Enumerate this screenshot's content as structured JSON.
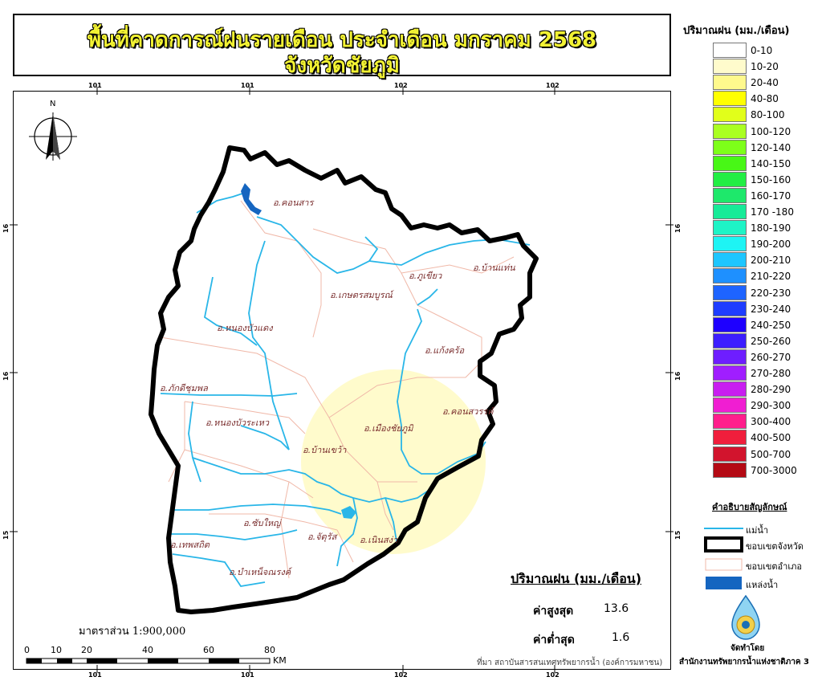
{
  "title": {
    "line1": "พื้นที่คาดการณ์ฝนรายเดือน ประจำเดือน มกราคม 2568",
    "line2": "จังหวัดชัยภูมิ"
  },
  "grid": {
    "top_ticks": [
      "101",
      "101",
      "102",
      "102"
    ],
    "bottom_ticks": [
      "101",
      "101",
      "102",
      "102"
    ],
    "left_ticks": [
      "16",
      "16",
      "15"
    ],
    "right_ticks": [
      "16",
      "16",
      "15"
    ]
  },
  "north_label": "N",
  "amphoe_labels": [
    "อ.คอนสาร",
    "อ.ภูเขียว",
    "อ.บ้านแท่น",
    "อ.เกษตรสมบูรณ์",
    "อ.หนองบัวแดง",
    "อ.แก้งคร้อ",
    "อ.ภักดีชุมพล",
    "อ.หนองบัวระเหว",
    "อ.เมืองชัยภูมิ",
    "อ.คอนสวรรค์",
    "อ.บ้านเขว้า",
    "อ.ซับใหญ่",
    "อ.จัตุรัส",
    "อ.เทพสถิต",
    "อ.เนินสง่า",
    "อ.บำเหน็จณรงค์"
  ],
  "legend": {
    "title": "ปริมาณฝน (มม./เดือน)",
    "classes": [
      {
        "label": "0-10",
        "color": "#ffffff"
      },
      {
        "label": "10-20",
        "color": "#fffbcc"
      },
      {
        "label": "20-40",
        "color": "#fff98d"
      },
      {
        "label": "40-80",
        "color": "#ffff00"
      },
      {
        "label": "80-100",
        "color": "#e1ff1a"
      },
      {
        "label": "100-120",
        "color": "#aaff22"
      },
      {
        "label": "120-140",
        "color": "#7dff19"
      },
      {
        "label": "140-150",
        "color": "#48f716"
      },
      {
        "label": "150-160",
        "color": "#22ee44"
      },
      {
        "label": "160-170",
        "color": "#1ee86b"
      },
      {
        "label": "170 -180",
        "color": "#17eb98"
      },
      {
        "label": "180-190",
        "color": "#1ef4c6"
      },
      {
        "label": "190-200",
        "color": "#1ef4f4"
      },
      {
        "label": "200-210",
        "color": "#1ec6ff"
      },
      {
        "label": "210-220",
        "color": "#1e90ff"
      },
      {
        "label": "220-230",
        "color": "#1e64ff"
      },
      {
        "label": "230-240",
        "color": "#1e3cff"
      },
      {
        "label": "240-250",
        "color": "#1e00ff"
      },
      {
        "label": "250-260",
        "color": "#3c1eff"
      },
      {
        "label": "260-270",
        "color": "#6e1eff"
      },
      {
        "label": "270-280",
        "color": "#a01eff"
      },
      {
        "label": "280-290",
        "color": "#c81ef0"
      },
      {
        "label": "290-300",
        "color": "#f01ed2"
      },
      {
        "label": "300-400",
        "color": "#ff1e8c"
      },
      {
        "label": "400-500",
        "color": "#f01e3c"
      },
      {
        "label": "500-700",
        "color": "#d2142d"
      },
      {
        "label": "700-3000",
        "color": "#b40a14"
      }
    ]
  },
  "key": {
    "title": "คำอธิบายสัญลักษณ์",
    "items": [
      {
        "label": "แม่น้ำ",
        "type": "river"
      },
      {
        "label": "ขอบเขตจังหวัด",
        "type": "province"
      },
      {
        "label": "ขอบเขตอำเภอ",
        "type": "district"
      },
      {
        "label": "แหล่งน้ำ",
        "type": "waterbody"
      }
    ]
  },
  "stats": {
    "title": "ปริมาณฝน (มม./เดือน)",
    "max_label": "ค่าสูงสุด",
    "max_value": "13.6",
    "min_label": "ค่าต่ำสุด",
    "min_value": "1.6"
  },
  "scale": {
    "text": "มาตราส่วน  1:900,000",
    "ticks": [
      "0",
      "10",
      "20",
      "40",
      "60",
      "80"
    ],
    "unit": "KM"
  },
  "source": "ที่มา  สถาบันสารสนเทศทรัพยากรน้ำ (องค์การมหาชน)",
  "organization": {
    "by": "จัดทำโดย",
    "name": "สำนักงานทรัพยากรน้ำแห่งชาติภาค 3"
  },
  "colors": {
    "river": "#29b6e8",
    "waterbody": "#1565c0",
    "district_line": "#f0b8a8",
    "rain_zone": "#fffbcc",
    "amphoe_text": "#7a2e2e"
  }
}
